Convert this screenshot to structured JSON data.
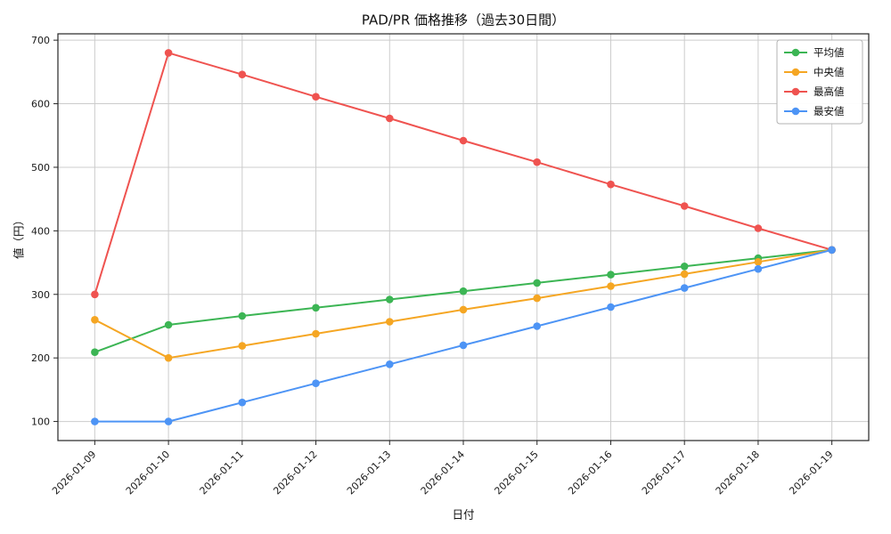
{
  "chart_data": {
    "type": "line",
    "title": "PAD/PR 価格推移（過去30日間）",
    "xlabel": "日付",
    "ylabel": "値（円）",
    "categories": [
      "2026-01-09",
      "2026-01-10",
      "2026-01-11",
      "2026-01-12",
      "2026-01-13",
      "2026-01-14",
      "2026-01-15",
      "2026-01-16",
      "2026-01-17",
      "2026-01-18",
      "2026-01-19"
    ],
    "series": [
      {
        "name": "平均値",
        "color": "#3cb554",
        "values": [
          209,
          252,
          266,
          279,
          292,
          305,
          318,
          331,
          344,
          357,
          370
        ]
      },
      {
        "name": "中央値",
        "color": "#f5a623",
        "values": [
          260,
          200,
          219,
          238,
          257,
          276,
          294,
          313,
          332,
          351,
          370
        ]
      },
      {
        "name": "最高値",
        "color": "#ef5350",
        "values": [
          300,
          680,
          646,
          611,
          577,
          542,
          508,
          473,
          439,
          404,
          370
        ]
      },
      {
        "name": "最安値",
        "color": "#4d94f5",
        "values": [
          100,
          100,
          130,
          160,
          190,
          220,
          250,
          280,
          310,
          340,
          370
        ]
      }
    ],
    "ylim": [
      70,
      710
    ],
    "yticks": [
      100,
      200,
      300,
      400,
      500,
      600,
      700
    ],
    "grid": true,
    "legend_position": "top-right",
    "grid_color": "#cccccc",
    "axis_color": "#262626",
    "tick_label_color": "#1a1a1a"
  }
}
